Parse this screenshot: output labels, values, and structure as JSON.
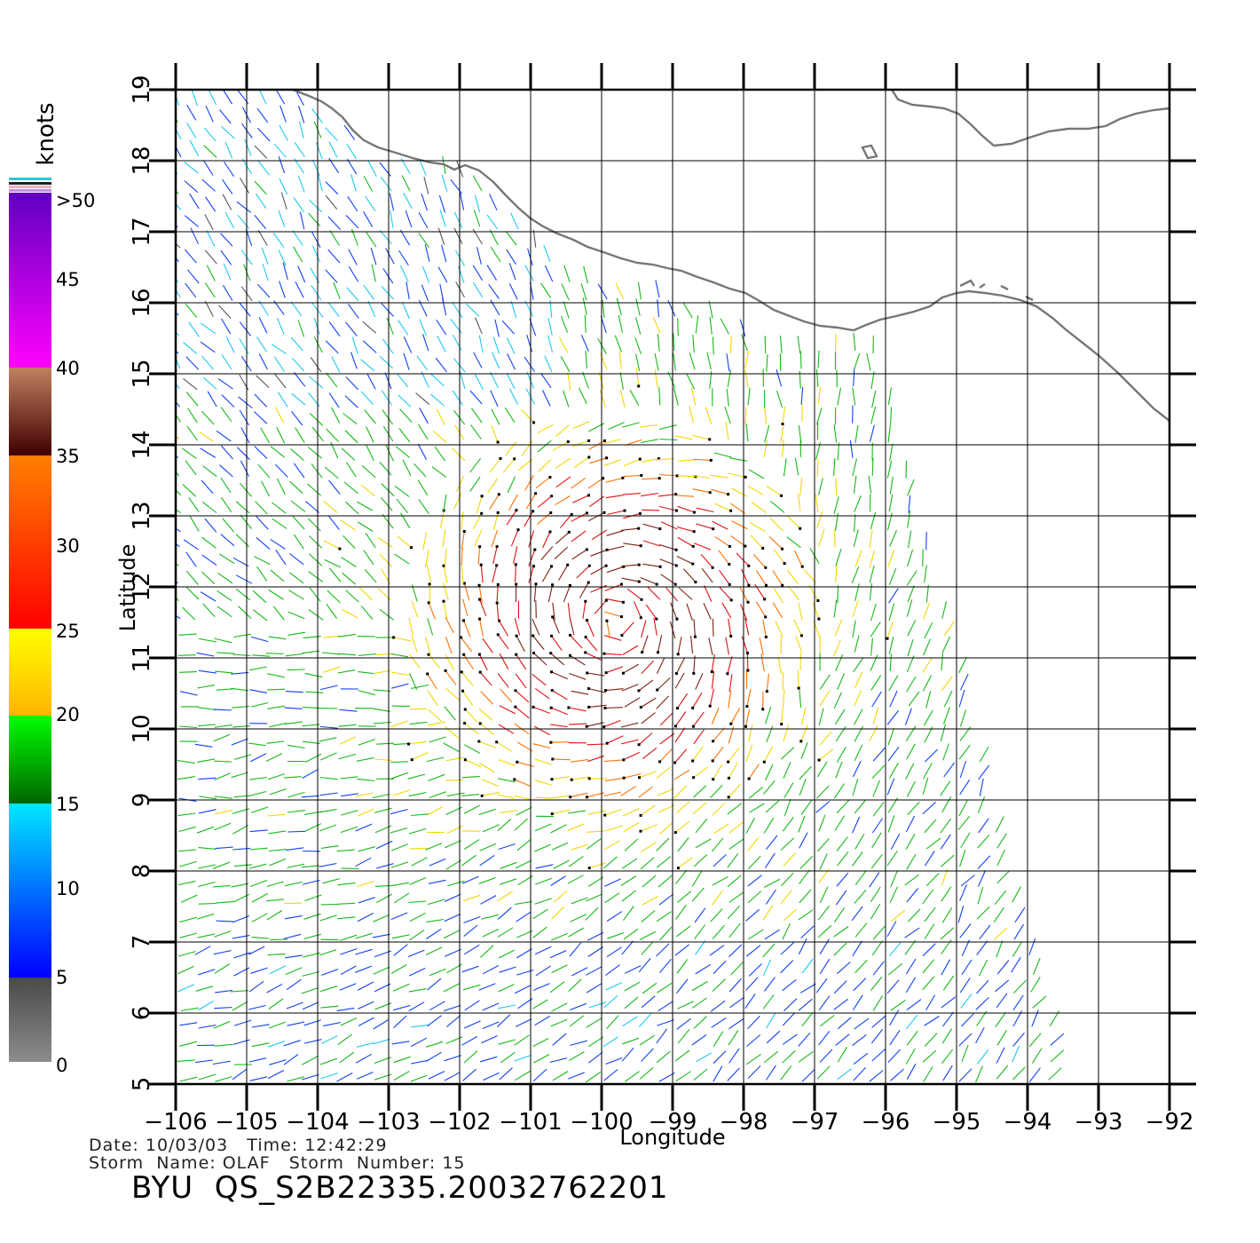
{
  "map": {
    "lon_ticks": [
      "-106",
      "-105",
      "-104",
      "-103",
      "-102",
      "-101",
      "-100",
      "-99",
      "-98",
      "-97",
      "-96",
      "-95",
      "-94",
      "-93",
      "-92"
    ],
    "lat_ticks": [
      "5",
      "6",
      "7",
      "8",
      "9",
      "10",
      "11",
      "12",
      "13",
      "14",
      "15",
      "16",
      "17",
      "18",
      "19"
    ],
    "lon_range": [
      -106,
      -92
    ],
    "lat_range": [
      5,
      19
    ],
    "xlabel": "Longitude",
    "ylabel": "Latitude",
    "grid": true
  },
  "legend": {
    "unit": "knots",
    "labels": [
      ">50",
      "45",
      "40",
      "35",
      "30",
      "25",
      "20",
      "15",
      "10",
      "5",
      "0"
    ],
    "bands": [
      {
        "range": "0-5",
        "top": "#4a4a4a",
        "bottom": "#8c8c8c"
      },
      {
        "range": "5-15",
        "top": "#00e8ff",
        "bottom": "#0000ff"
      },
      {
        "range": "15-20",
        "top": "#00ff00",
        "bottom": "#006400"
      },
      {
        "range": "20-25",
        "top": "#ffff00",
        "bottom": "#ffb400"
      },
      {
        "range": "25-35",
        "top": "#ff8000",
        "bottom": "#ff0000"
      },
      {
        "range": "35-40",
        "top": "#c08060",
        "bottom": "#400000"
      },
      {
        "range": "40-50",
        "top": "#ff00ff",
        "bottom": "#6000c0"
      }
    ]
  },
  "footer": {
    "date_line": "Date: 10/03/03   Time: 12:42:29",
    "storm_line": "Storm  Name: OLAF   Storm  Number: 15",
    "product": "BYU  QS_S2B22335.20032762201"
  },
  "wind_field": {
    "storm_name": "OLAF",
    "storm_center": {
      "lon": -99.8,
      "lat": 11.5
    },
    "swath_east_edge_lon": [
      -95.7,
      -93.5
    ]
  }
}
